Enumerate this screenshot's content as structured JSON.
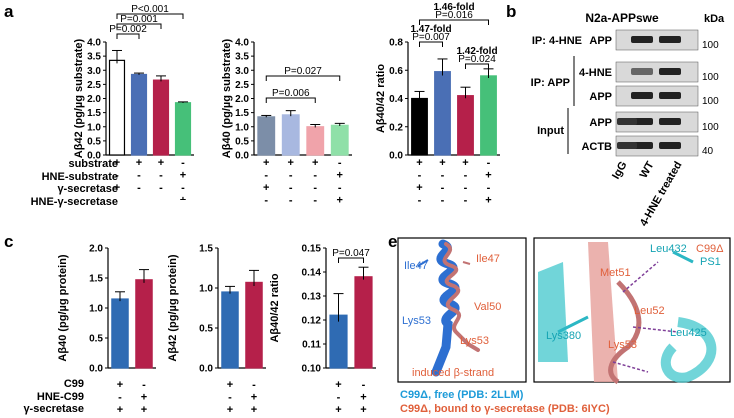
{
  "panel_letters": {
    "a": "a",
    "b": "b",
    "c": "c",
    "e": "e"
  },
  "charts_a": {
    "row_labels": [
      "substrate",
      "HNE-substrate",
      "γ-secretase",
      "HNE-γ-secretase"
    ],
    "ab42": {
      "ylabel": "Aβ42 (pg/µg substrate)",
      "ylim": [
        0,
        4
      ],
      "ticks": [
        "0.0",
        "0.5",
        "1.0",
        "1.5",
        "2.0",
        "2.5",
        "3.0",
        "3.5",
        "4.0"
      ],
      "values": [
        3.35,
        2.85,
        2.65,
        1.85
      ],
      "errors": [
        0.35,
        0.05,
        0.15,
        0.03
      ],
      "colors": [
        "#ffffff",
        "#4a6fb5",
        "#b5204a",
        "#46c079"
      ],
      "signs": [
        [
          "+",
          "+",
          "+",
          "-"
        ],
        [
          "-",
          "-",
          "-",
          "+"
        ],
        [
          "+",
          "-",
          "-",
          "-"
        ],
        [
          "-",
          "-",
          "-",
          "+"
        ]
      ],
      "annotations": [
        "P<0.001",
        "P=0.001",
        "P=0.002"
      ]
    },
    "ab40": {
      "ylabel": "Aβ40 (pg/µg substrate)",
      "ylim": [
        0,
        4
      ],
      "ticks": [
        "0.0",
        "0.5",
        "1.0",
        "1.5",
        "2.0",
        "2.5",
        "3.0",
        "3.5",
        "4.0"
      ],
      "values": [
        1.35,
        1.42,
        1.0,
        1.05
      ],
      "errors": [
        0.05,
        0.15,
        0.08,
        0.07
      ],
      "colors": [
        "#7c8ea8",
        "#a8b8e0",
        "#f0a3aa",
        "#8fe0a8"
      ],
      "annotations": [
        "P=0.027",
        "P=0.006"
      ]
    },
    "ratio": {
      "ylabel": "Aβ40/42 ratio",
      "ylim": [
        0,
        0.8
      ],
      "ticks": [
        "0.0",
        "0.2",
        "0.4",
        "0.6",
        "0.8"
      ],
      "values": [
        0.4,
        0.59,
        0.42,
        0.56
      ],
      "errors": [
        0.05,
        0.09,
        0.06,
        0.05
      ],
      "colors": [
        "#000000",
        "#4a6fb5",
        "#b5204a",
        "#46c079"
      ],
      "annotations": [
        "1.46-fold",
        "P=0.016",
        "1.47-fold",
        "P=0.007",
        "1.42-fold",
        "P=0.024"
      ]
    }
  },
  "panel_b": {
    "title": "N2a-APPswe",
    "kda": "kDa",
    "ip_hne": "IP: 4-HNE",
    "ip_app": "IP: APP",
    "input": "Input",
    "bands": [
      "APP",
      "4-HNE",
      "APP",
      "APP",
      "ACTB"
    ],
    "markers": [
      "100",
      "100",
      "100",
      "100",
      "40"
    ],
    "lanes": [
      "IgG",
      "WT",
      "4-HNE treated"
    ]
  },
  "charts_c": {
    "row_labels": [
      "C99",
      "HNE-C99",
      "γ-secretase"
    ],
    "ab40": {
      "ylabel": "Aβ40 (pg/µg protein)",
      "ylim": [
        0,
        2.0
      ],
      "ticks": [
        "0.0",
        "0.5",
        "1.0",
        "1.5",
        "2.0"
      ],
      "values": [
        1.15,
        1.47
      ],
      "errors": [
        0.12,
        0.17
      ],
      "colors": [
        "#2f6bb3",
        "#b5204a"
      ]
    },
    "ab42": {
      "ylabel": "Aβ42 (pg/µg protein)",
      "ylim": [
        0,
        1.5
      ],
      "ticks": [
        "0.0",
        "0.5",
        "1.0",
        "1.5"
      ],
      "values": [
        0.95,
        1.07
      ],
      "errors": [
        0.07,
        0.15
      ],
      "colors": [
        "#2f6bb3",
        "#b5204a"
      ]
    },
    "ratio": {
      "ylabel": "Aβ40/42 ratio",
      "ylim": [
        0.1,
        0.15
      ],
      "ticks": [
        "0.10",
        "0.11",
        "0.12",
        "0.13",
        "0.14",
        "0.15"
      ],
      "values": [
        0.122,
        0.138
      ],
      "errors": [
        0.009,
        0.004
      ],
      "colors": [
        "#2f6bb3",
        "#b5204a"
      ],
      "annotations": [
        "P=0.047"
      ]
    },
    "signs": [
      [
        "+",
        "-"
      ],
      [
        "-",
        "+"
      ],
      [
        "+",
        "+"
      ]
    ]
  },
  "panel_e": {
    "left_labels": [
      "Ile47",
      "Ile47",
      "Val50",
      "Lys53",
      "Lys53",
      "induced β-strand"
    ],
    "right_labels": [
      "Leu432",
      "C99Δ",
      "PS1",
      "Met51",
      "Leu52",
      "Lys380",
      "Lys53",
      "Leu425"
    ],
    "legend_free": "C99Δ, free (PDB: 2LLM)",
    "legend_bound": "C99Δ, bound to γ-secretase (PDB: 6IYC)"
  }
}
